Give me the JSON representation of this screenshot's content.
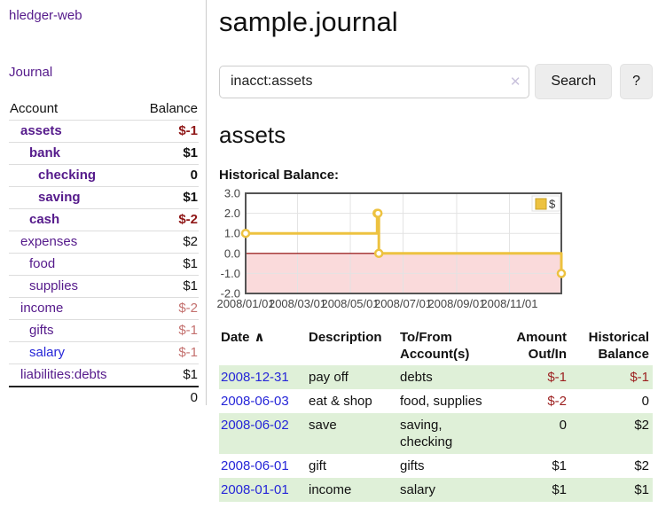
{
  "brand": "hledger-web",
  "nav": {
    "journal_label": "Journal"
  },
  "sidebar_accounts": {
    "headers": {
      "account": "Account",
      "balance": "Balance"
    },
    "rows": [
      {
        "name": "assets",
        "depth": 1,
        "balance": "$-1",
        "bold": true,
        "balance_tone": "neg-strong"
      },
      {
        "name": "bank",
        "depth": 2,
        "balance": "$1",
        "bold": true,
        "balance_tone": ""
      },
      {
        "name": "checking",
        "depth": 3,
        "balance": "0",
        "bold": true,
        "balance_tone": ""
      },
      {
        "name": "saving",
        "depth": 3,
        "balance": "$1",
        "bold": true,
        "balance_tone": ""
      },
      {
        "name": "cash",
        "depth": 2,
        "balance": "$-2",
        "bold": true,
        "balance_tone": "neg-strong"
      },
      {
        "name": "expenses",
        "depth": 1,
        "balance": "$2",
        "bold": false,
        "balance_tone": ""
      },
      {
        "name": "food",
        "depth": 2,
        "balance": "$1",
        "bold": false,
        "balance_tone": ""
      },
      {
        "name": "supplies",
        "depth": 2,
        "balance": "$1",
        "bold": false,
        "balance_tone": ""
      },
      {
        "name": "income",
        "depth": 1,
        "balance": "$-2",
        "bold": false,
        "balance_tone": "neg-soft"
      },
      {
        "name": "gifts",
        "depth": 2,
        "balance": "$-1",
        "bold": false,
        "balance_tone": "neg-soft"
      },
      {
        "name": "salary",
        "depth": 2,
        "balance": "$-1",
        "bold": false,
        "balance_tone": "neg-soft",
        "link_color": "blue"
      },
      {
        "name": "liabilities:debts",
        "depth": 1,
        "balance": "$1",
        "bold": false,
        "balance_tone": ""
      }
    ],
    "total": "0"
  },
  "header": {
    "title": "sample.journal"
  },
  "search": {
    "value": "inacct:assets",
    "clear_icon": "✕",
    "button_label": "Search",
    "help_label": "?"
  },
  "account_page": {
    "title": "assets",
    "chart_label": "Historical Balance:"
  },
  "chart_data": {
    "type": "line",
    "title": "Historical Balance",
    "series": [
      {
        "name": "$",
        "color": "#edc240",
        "steps": true,
        "points": [
          {
            "date": "2008/01/01",
            "value": 1
          },
          {
            "date": "2008/06/01",
            "value": 2
          },
          {
            "date": "2008/06/02",
            "value": 2
          },
          {
            "date": "2008/06/03",
            "value": 0
          },
          {
            "date": "2008/12/31",
            "value": -1
          }
        ]
      }
    ],
    "x_range": [
      "2008/01/01",
      "2008/12/31"
    ],
    "x_ticks": [
      "2008/01/01",
      "2008/03/01",
      "2008/05/01",
      "2008/07/01",
      "2008/09/01",
      "2008/11/01"
    ],
    "y_ticks": [
      3.0,
      2.0,
      1.0,
      0.0,
      -1.0,
      -2.0
    ],
    "y_range": [
      -2,
      3
    ],
    "legend": {
      "label": "$",
      "position": "top-right"
    },
    "grid": true,
    "negative_region_color": "#fadadb",
    "zero_line_color": "#8b0000",
    "grid_color": "#e3e3e3",
    "border_color": "#545454"
  },
  "transactions": {
    "headers": {
      "date": "Date",
      "sort_icon": "∧",
      "description": "Description",
      "tofrom": "To/From Account(s)",
      "amount": "Amount Out/In",
      "balance": "Historical Balance"
    },
    "rows": [
      {
        "date": "2008-12-31",
        "description": "pay off",
        "accounts": "debts",
        "amount": "$-1",
        "balance": "$-1"
      },
      {
        "date": "2008-06-03",
        "description": "eat & shop",
        "accounts": "food, supplies",
        "amount": "$-2",
        "balance": "0"
      },
      {
        "date": "2008-06-02",
        "description": "save",
        "accounts": "saving, checking",
        "amount": "0",
        "balance": "$2"
      },
      {
        "date": "2008-06-01",
        "description": "gift",
        "accounts": "gifts",
        "amount": "$1",
        "balance": "$2"
      },
      {
        "date": "2008-01-01",
        "description": "income",
        "accounts": "salary",
        "amount": "$1",
        "balance": "$1"
      }
    ]
  }
}
